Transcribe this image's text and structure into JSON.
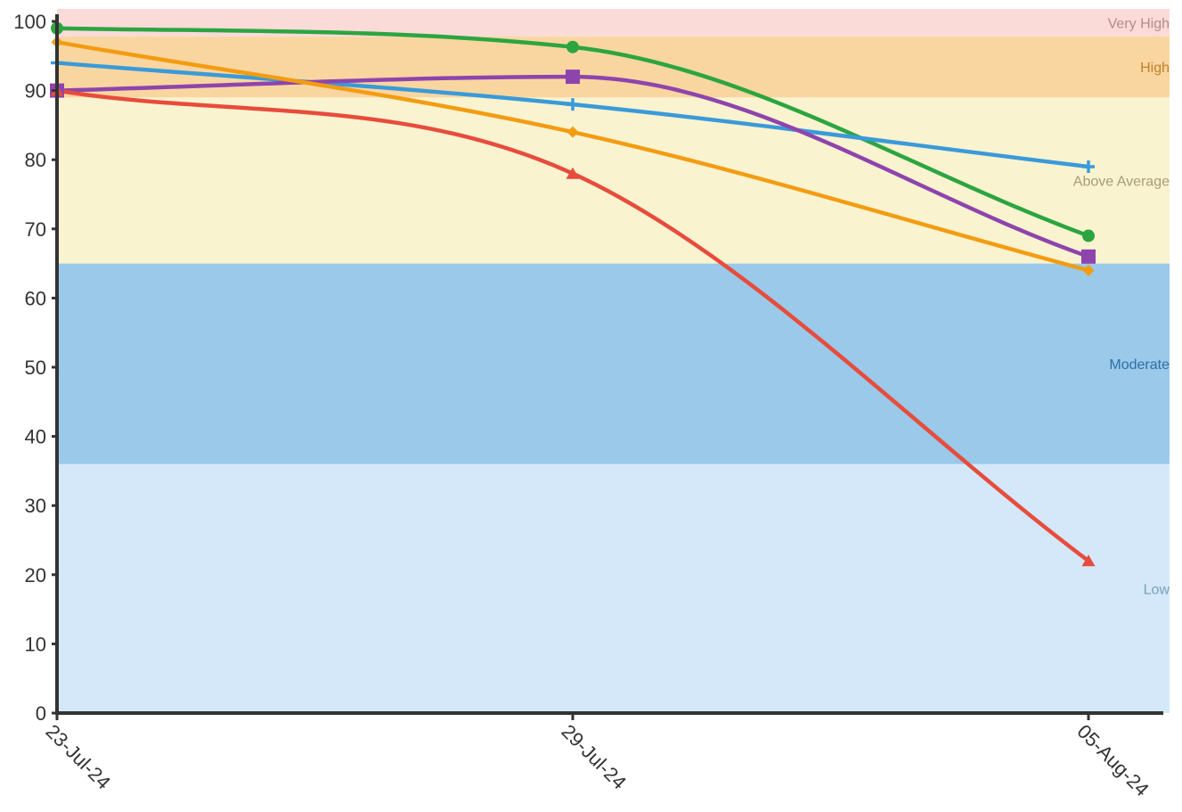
{
  "chart_data": {
    "type": "line",
    "title": "",
    "xlabel": "",
    "ylabel": "",
    "categories": [
      "23-Jul-24",
      "29-Jul-24",
      "05-Aug-24"
    ],
    "ylim": [
      0,
      101
    ],
    "y_ticks": [
      "0",
      "10",
      "20",
      "30",
      "40",
      "50",
      "60",
      "70",
      "80",
      "90",
      "100"
    ],
    "grid": false,
    "legend": "none",
    "bands": [
      {
        "label": "Low",
        "from": 0,
        "to": 36,
        "color": "#d4e8fa",
        "label_color": "#7aa3b8"
      },
      {
        "label": "Moderate",
        "from": 36,
        "to": 65,
        "color": "#9ac9e9",
        "label_color": "#2f6fa8"
      },
      {
        "label": "Above Average",
        "from": 65,
        "to": 89,
        "color": "#faf3d0",
        "label_color": "#a99a7a"
      },
      {
        "label": "High",
        "from": 89,
        "to": 97.8,
        "color": "#f9d6a0",
        "label_color": "#c0822a"
      },
      {
        "label": "Very High",
        "from": 97.8,
        "to": 101,
        "color": "#fadbd8",
        "label_color": "#b48c8a"
      }
    ],
    "series": [
      {
        "values": [
          99,
          96.3,
          69
        ],
        "color": "#2ca540",
        "marker": "circle"
      },
      {
        "values": [
          94,
          88,
          79
        ],
        "color": "#3a9ad9",
        "marker": "plus"
      },
      {
        "values": [
          90,
          92,
          66
        ],
        "color": "#8e44ad",
        "marker": "square"
      },
      {
        "values": [
          97,
          84,
          64
        ],
        "color": "#f39c12",
        "marker": "diamond"
      },
      {
        "values": [
          90,
          78,
          22
        ],
        "color": "#e74c3c",
        "marker": "triangle"
      }
    ]
  }
}
